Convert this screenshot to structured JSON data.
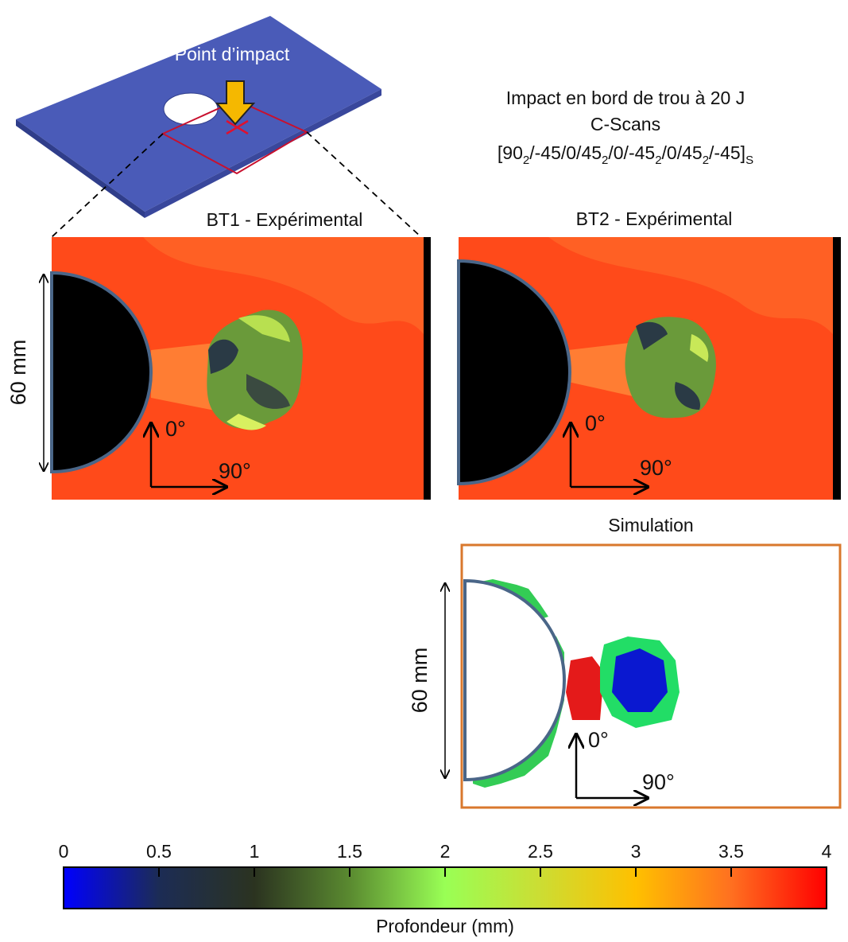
{
  "plate_label": "Point d’impact",
  "title": {
    "line1": "Impact en bord de trou à 20 J",
    "line2": "C-Scans",
    "layup": [
      "[90",
      "2",
      "/-45/0/45",
      "2",
      "/0/-45",
      "2",
      "/0/45",
      "2",
      "/-45]",
      "S"
    ]
  },
  "panels": [
    {
      "label": "BT1 - Expérimental",
      "size_label": "60 mm",
      "axis_a": "0°",
      "axis_b": "90°"
    },
    {
      "label": "BT2  - Expérimental",
      "axis_a": "0°",
      "axis_b": "90°"
    },
    {
      "label": "Simulation",
      "size_label": "60 mm",
      "axis_a": "0°",
      "axis_b": "90°"
    }
  ],
  "colorbar": {
    "label": "Profondeur (mm)",
    "lim": [
      0,
      4
    ],
    "ticks": [
      0,
      0.5,
      1,
      1.5,
      2,
      2.5,
      3,
      3.5,
      4
    ],
    "colors": [
      "#0000ff",
      "#1c2c55",
      "#2b3320",
      "#5a8a30",
      "#99ff55",
      "#ccdd33",
      "#ffc000",
      "#ff7020",
      "#ff0000"
    ]
  }
}
